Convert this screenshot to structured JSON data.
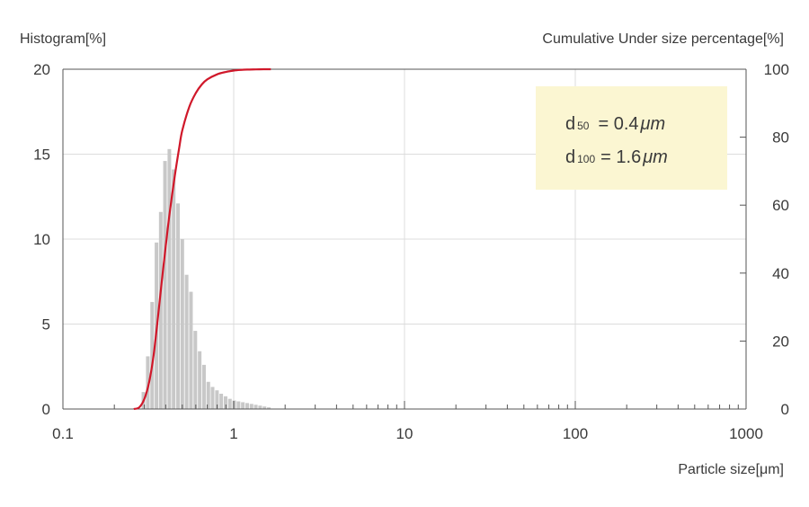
{
  "chart_data": {
    "type": "bar",
    "x_scale": "log",
    "xlim": [
      0.1,
      1000
    ],
    "x_ticks": [
      {
        "value": 0.1,
        "label": "0.1"
      },
      {
        "value": 1,
        "label": "1"
      },
      {
        "value": 10,
        "label": "10"
      },
      {
        "value": 100,
        "label": "100"
      },
      {
        "value": 1000,
        "label": "1000"
      }
    ],
    "xlabel": "Particle size[μm]",
    "y_left": {
      "label": "Histogram[%]",
      "lim": [
        0,
        20
      ],
      "ticks": [
        "0",
        "5",
        "10",
        "15",
        "20"
      ],
      "tick_values": [
        0,
        5,
        10,
        15,
        20
      ]
    },
    "y_right": {
      "label": "Cumulative Under size percentage[%]",
      "lim": [
        0,
        100
      ],
      "ticks": [
        "0",
        "20",
        "40",
        "60",
        "80",
        "100"
      ],
      "tick_values": [
        0,
        20,
        40,
        60,
        80,
        100
      ]
    },
    "grid": true,
    "histogram": {
      "color": "#c8c8c8",
      "x": [
        0.296,
        0.314,
        0.333,
        0.353,
        0.374,
        0.396,
        0.42,
        0.445,
        0.472,
        0.5,
        0.53,
        0.562,
        0.596,
        0.632,
        0.67,
        0.71,
        0.752,
        0.798,
        0.845,
        0.896,
        0.95,
        1.007,
        1.067,
        1.131,
        1.199,
        1.271,
        1.347,
        1.428,
        1.514,
        1.605
      ],
      "values": [
        1.0,
        3.1,
        6.3,
        9.8,
        11.6,
        14.6,
        15.3,
        14.1,
        12.1,
        10.0,
        7.9,
        6.9,
        4.6,
        3.4,
        2.6,
        1.6,
        1.3,
        1.1,
        0.9,
        0.75,
        0.6,
        0.5,
        0.45,
        0.4,
        0.35,
        0.3,
        0.25,
        0.2,
        0.15,
        0.1
      ]
    },
    "cumulative": {
      "color": "#d0182a",
      "x": [
        0.26,
        0.28,
        0.3,
        0.32,
        0.34,
        0.36,
        0.38,
        0.4,
        0.42,
        0.45,
        0.48,
        0.5,
        0.55,
        0.6,
        0.65,
        0.7,
        0.8,
        0.9,
        1.0,
        1.1,
        1.2,
        1.35,
        1.5,
        1.65
      ],
      "values": [
        0.0,
        0.5,
        3,
        8,
        16,
        27,
        38,
        48,
        57,
        68,
        77,
        82,
        89,
        93,
        95.5,
        97,
        98.5,
        99.2,
        99.6,
        99.8,
        99.9,
        99.95,
        100,
        100
      ]
    },
    "annotation": {
      "lines": [
        {
          "symbol": "d",
          "sub": "50",
          "eq": "= 0.4",
          "unit": "μm"
        },
        {
          "symbol": "d",
          "sub": "100",
          "eq": "= 1.6",
          "unit": "μm"
        }
      ],
      "background": "#fbf6d2"
    }
  }
}
